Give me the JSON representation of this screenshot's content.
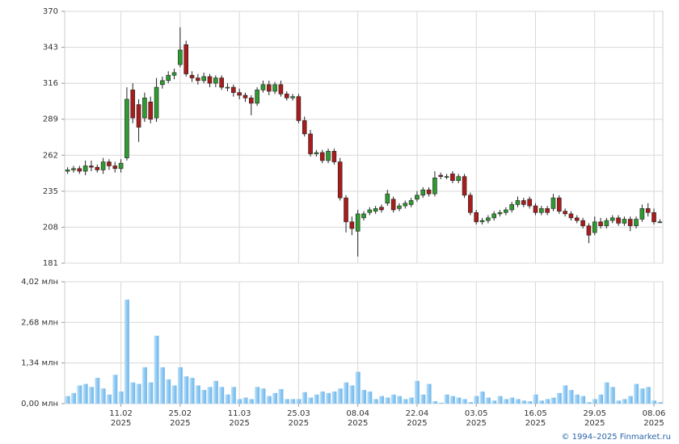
{
  "chart_data": [
    {
      "type": "candlestick",
      "open": [
        250,
        251,
        252,
        250,
        254,
        253,
        251,
        257,
        254,
        252,
        260,
        311,
        300,
        290,
        302,
        290,
        315,
        318,
        322,
        330,
        345,
        322,
        320,
        318,
        321,
        316,
        320,
        313,
        313,
        309,
        307,
        305,
        301,
        311,
        315,
        310,
        315,
        308,
        305,
        306,
        288,
        278,
        263,
        264,
        258,
        265,
        257,
        230,
        212,
        205,
        215,
        219,
        220,
        223,
        226,
        229,
        222,
        224,
        225,
        229,
        232,
        236,
        233,
        247,
        246,
        248,
        243,
        246,
        232,
        219,
        212,
        213,
        215,
        218,
        219,
        221,
        225,
        228,
        229,
        224,
        219,
        222,
        222,
        230,
        220,
        218,
        215,
        213,
        209,
        204,
        212,
        209,
        213,
        215,
        211,
        214,
        209,
        214,
        222,
        219,
        212
      ],
      "high": [
        253,
        254,
        254,
        258,
        258,
        255,
        260,
        259,
        257,
        259,
        313,
        316,
        304,
        309,
        306,
        320,
        321,
        325,
        327,
        358,
        348,
        325,
        323,
        324,
        323,
        322,
        322,
        316,
        315,
        312,
        309,
        307,
        313,
        318,
        318,
        317,
        318,
        310,
        308,
        308,
        291,
        281,
        266,
        266,
        267,
        267,
        260,
        232,
        216,
        221,
        220,
        223,
        224,
        225,
        236,
        231,
        226,
        228,
        230,
        235,
        238,
        238,
        250,
        249,
        248,
        250,
        248,
        248,
        234,
        221,
        215,
        217,
        220,
        221,
        223,
        227,
        231,
        230,
        231,
        226,
        224,
        224,
        233,
        232,
        222,
        220,
        217,
        215,
        211,
        216,
        215,
        215,
        217,
        217,
        216,
        216,
        216,
        225,
        226,
        222,
        214
      ],
      "low": [
        248,
        249,
        248,
        247,
        250,
        249,
        248,
        251,
        249,
        249,
        258,
        286,
        272,
        287,
        286,
        287,
        312,
        316,
        319,
        328,
        321,
        317,
        315,
        316,
        313,
        313,
        311,
        310,
        306,
        304,
        302,
        292,
        299,
        309,
        307,
        308,
        306,
        303,
        303,
        286,
        276,
        261,
        261,
        256,
        256,
        255,
        228,
        204,
        202,
        186,
        213,
        217,
        218,
        219,
        224,
        219,
        220,
        222,
        223,
        227,
        230,
        231,
        231,
        244,
        244,
        241,
        241,
        230,
        217,
        210,
        210,
        211,
        213,
        216,
        217,
        219,
        223,
        223,
        222,
        217,
        217,
        217,
        220,
        218,
        216,
        213,
        211,
        207,
        196,
        202,
        207,
        207,
        211,
        209,
        209,
        205,
        207,
        212,
        216,
        210,
        211
      ],
      "close": [
        251,
        252,
        250,
        254,
        253,
        251,
        257,
        254,
        252,
        256,
        304,
        290,
        283,
        305,
        289,
        313,
        318,
        322,
        324,
        341,
        323,
        320,
        318,
        321,
        316,
        320,
        313,
        313,
        309,
        307,
        305,
        301,
        311,
        315,
        310,
        315,
        308,
        305,
        306,
        288,
        278,
        263,
        264,
        258,
        265,
        257,
        230,
        212,
        207,
        218,
        218,
        221,
        222,
        221,
        233,
        221,
        224,
        226,
        228,
        232,
        236,
        233,
        245,
        246,
        246,
        243,
        246,
        232,
        219,
        212,
        213,
        215,
        218,
        219,
        221,
        225,
        228,
        225,
        224,
        219,
        222,
        219,
        230,
        220,
        218,
        215,
        213,
        209,
        202,
        212,
        209,
        213,
        215,
        211,
        214,
        209,
        214,
        222,
        219,
        212,
        212
      ],
      "up_color": "#2f9a2f",
      "down_color": "#a81c1c",
      "ylim": [
        181,
        370
      ],
      "yticks": [
        181,
        208,
        235,
        262,
        289,
        316,
        343,
        370
      ],
      "grid": true
    },
    {
      "type": "bar",
      "categories": [
        null,
        null,
        null,
        null,
        null,
        null,
        null,
        null,
        null,
        "11.02\n2025",
        null,
        null,
        null,
        null,
        null,
        null,
        null,
        null,
        null,
        "25.02\n2025",
        null,
        null,
        null,
        null,
        null,
        null,
        null,
        null,
        null,
        "11.03\n2025",
        null,
        null,
        null,
        null,
        null,
        null,
        null,
        null,
        null,
        "25.03\n2025",
        null,
        null,
        null,
        null,
        null,
        null,
        null,
        null,
        null,
        "08.04\n2025",
        null,
        null,
        null,
        null,
        null,
        null,
        null,
        null,
        null,
        "22.04\n2025",
        null,
        null,
        null,
        null,
        null,
        null,
        null,
        null,
        null,
        "03.05\n2025",
        null,
        null,
        null,
        null,
        null,
        null,
        null,
        null,
        null,
        "16.05\n2025",
        null,
        null,
        null,
        null,
        null,
        null,
        null,
        null,
        null,
        "29.05\n2025",
        null,
        null,
        null,
        null,
        null,
        null,
        null,
        null,
        null,
        "08.06\n2025",
        null
      ],
      "values": [
        0.25,
        0.35,
        0.6,
        0.65,
        0.55,
        0.85,
        0.5,
        0.3,
        0.95,
        0.4,
        3.43,
        0.7,
        0.65,
        1.2,
        0.7,
        2.24,
        1.2,
        0.8,
        0.6,
        1.2,
        0.9,
        0.85,
        0.6,
        0.45,
        0.55,
        0.75,
        0.55,
        0.3,
        0.55,
        0.15,
        0.2,
        0.15,
        0.55,
        0.5,
        0.25,
        0.35,
        0.48,
        0.15,
        0.15,
        0.15,
        0.38,
        0.2,
        0.3,
        0.4,
        0.35,
        0.4,
        0.5,
        0.7,
        0.6,
        1.05,
        0.45,
        0.4,
        0.15,
        0.25,
        0.2,
        0.3,
        0.25,
        0.15,
        0.2,
        0.75,
        0.3,
        0.65,
        0.08,
        0.03,
        0.3,
        0.25,
        0.2,
        0.15,
        0.05,
        0.25,
        0.4,
        0.2,
        0.1,
        0.25,
        0.15,
        0.2,
        0.15,
        0.1,
        0.08,
        0.3,
        0.1,
        0.15,
        0.2,
        0.35,
        0.6,
        0.45,
        0.3,
        0.25,
        0.05,
        0.15,
        0.3,
        0.7,
        0.55,
        0.1,
        0.15,
        0.25,
        0.65,
        0.5,
        0.55,
        0.1,
        0.05
      ],
      "color": "#8ec9f2",
      "ylim": [
        0,
        4.02
      ],
      "yticks": [
        {
          "value": 0,
          "label": "0,00 млн"
        },
        {
          "value": 1.34,
          "label": "1,34 млн"
        },
        {
          "value": 2.68,
          "label": "2,68 млн"
        },
        {
          "value": 4.02,
          "label": "4,02 млн"
        }
      ],
      "grid": true
    }
  ],
  "footer": "© 1994–2025 Finmarket.ru"
}
